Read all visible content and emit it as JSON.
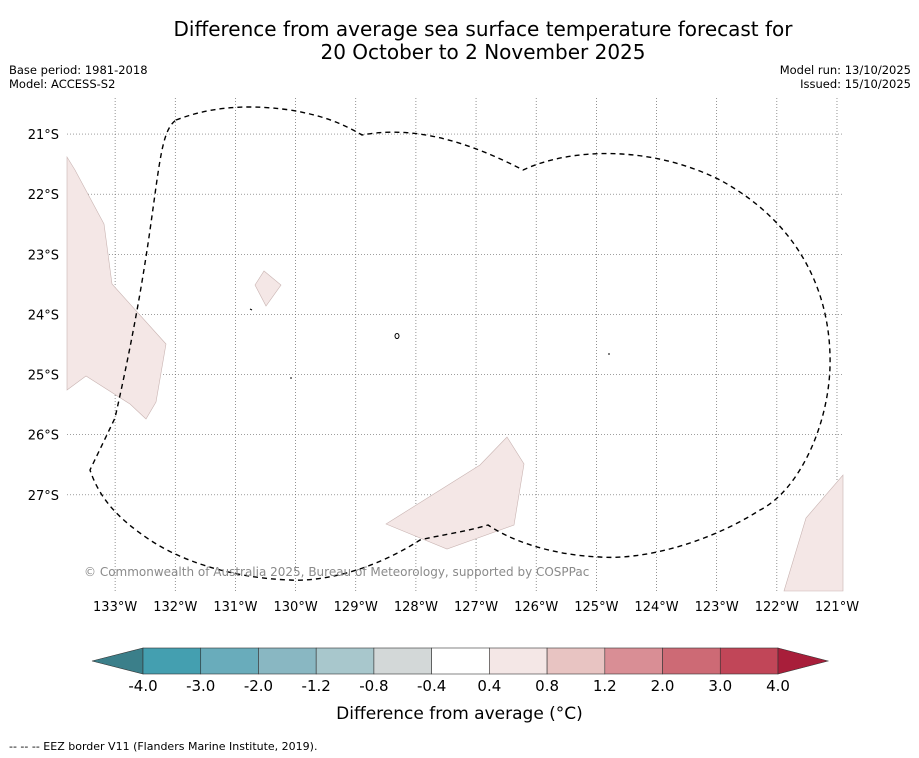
{
  "title": {
    "line1": "Difference from average sea surface temperature forecast for",
    "line2": "20 October to 2 November 2025"
  },
  "meta": {
    "base_period": "Base period: 1981-2018",
    "model": "Model: ACCESS-S2",
    "model_run": "Model run: 13/10/2025",
    "issued": "Issued: 15/10/2025"
  },
  "map": {
    "lon_labels": [
      "133°W",
      "132°W",
      "131°W",
      "130°W",
      "129°W",
      "128°W",
      "127°W",
      "126°W",
      "125°W",
      "124°W",
      "123°W",
      "122°W",
      "121°W"
    ],
    "lat_labels": [
      "21°S",
      "22°S",
      "23°S",
      "24°S",
      "25°S",
      "26°S",
      "27°S"
    ],
    "lon_values": [
      -133,
      -132,
      -131,
      -130,
      -129,
      -128,
      -127,
      -126,
      -125,
      -124,
      -123,
      -122,
      -121
    ],
    "lat_values": [
      -21,
      -22,
      -23,
      -24,
      -25,
      -26,
      -27
    ],
    "lon_range": [
      -133.8,
      -120.9
    ],
    "lat_range": [
      -28.6,
      -20.4
    ],
    "credit": "© Commonwealth of Australia 2025, Bureau of Meteorology, supported by COSPPac",
    "anomaly_fill_color": "#f4e7e6",
    "eez_line_color": "#000000"
  },
  "colorbar": {
    "labels": [
      "-4.0",
      "-3.0",
      "-2.0",
      "-1.2",
      "-0.8",
      "-0.4",
      "0.4",
      "0.8",
      "1.2",
      "2.0",
      "3.0",
      "4.0"
    ],
    "colors": [
      "#449fb0",
      "#69acbb",
      "#89b7c2",
      "#a8c7cc",
      "#d3d8d8",
      "#ffffff",
      "#f4e7e6",
      "#e8c4c2",
      "#d98e95",
      "#cd6a75",
      "#c14658"
    ],
    "under_color": "#3b7f8a",
    "over_color": "#a81e3a",
    "label": "Difference from average ($^\\circ$C)",
    "label_display": "Difference from average (°C)"
  },
  "footnote": "--  --  -- EEZ border V11 (Flanders Marine Institute, 2019)."
}
